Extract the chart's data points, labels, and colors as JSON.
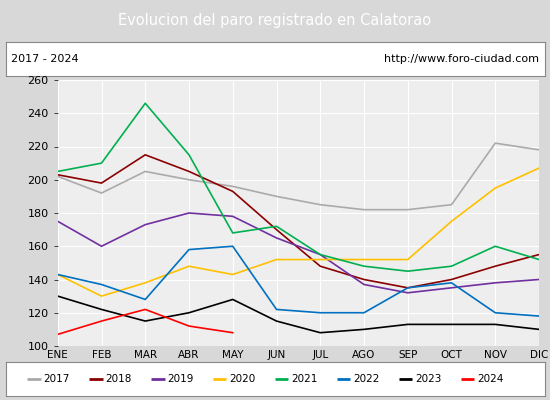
{
  "title": "Evolucion del paro registrado en Calatorao",
  "title_color": "#ffffff",
  "title_bg": "#4472c4",
  "subtitle_left": "2017 - 2024",
  "subtitle_right": "http://www.foro-ciudad.com",
  "months": [
    "ENE",
    "FEB",
    "MAR",
    "ABR",
    "MAY",
    "JUN",
    "JUL",
    "AGO",
    "SEP",
    "OCT",
    "NOV",
    "DIC"
  ],
  "ylim": [
    100,
    260
  ],
  "yticks": [
    100,
    120,
    140,
    160,
    180,
    200,
    220,
    240,
    260
  ],
  "series": {
    "2017": {
      "color": "#aaaaaa",
      "data": [
        202,
        192,
        205,
        200,
        196,
        190,
        185,
        182,
        182,
        185,
        222,
        218
      ]
    },
    "2018": {
      "color": "#8b0000",
      "data": [
        203,
        198,
        215,
        205,
        193,
        170,
        148,
        140,
        135,
        140,
        148,
        155
      ]
    },
    "2019": {
      "color": "#7030a0",
      "data": [
        175,
        160,
        173,
        180,
        178,
        165,
        155,
        137,
        132,
        135,
        138,
        140
      ]
    },
    "2020": {
      "color": "#ffc000",
      "data": [
        143,
        130,
        138,
        148,
        143,
        152,
        152,
        152,
        152,
        175,
        195,
        207
      ]
    },
    "2021": {
      "color": "#00b050",
      "data": [
        205,
        210,
        246,
        215,
        168,
        172,
        155,
        148,
        145,
        148,
        160,
        152
      ]
    },
    "2022": {
      "color": "#0070c0",
      "data": [
        143,
        137,
        128,
        158,
        160,
        122,
        120,
        120,
        135,
        138,
        120,
        118
      ]
    },
    "2023": {
      "color": "#000000",
      "data": [
        130,
        122,
        115,
        120,
        128,
        115,
        108,
        110,
        113,
        113,
        113,
        110
      ]
    },
    "2024": {
      "color": "#ff0000",
      "data": [
        107,
        115,
        122,
        112,
        108,
        null,
        null,
        null,
        null,
        null,
        null,
        null
      ]
    }
  },
  "bg_color": "#e8e8e8",
  "plot_bg": "#eeeeee",
  "grid_color": "#ffffff",
  "outer_bg": "#d8d8d8"
}
